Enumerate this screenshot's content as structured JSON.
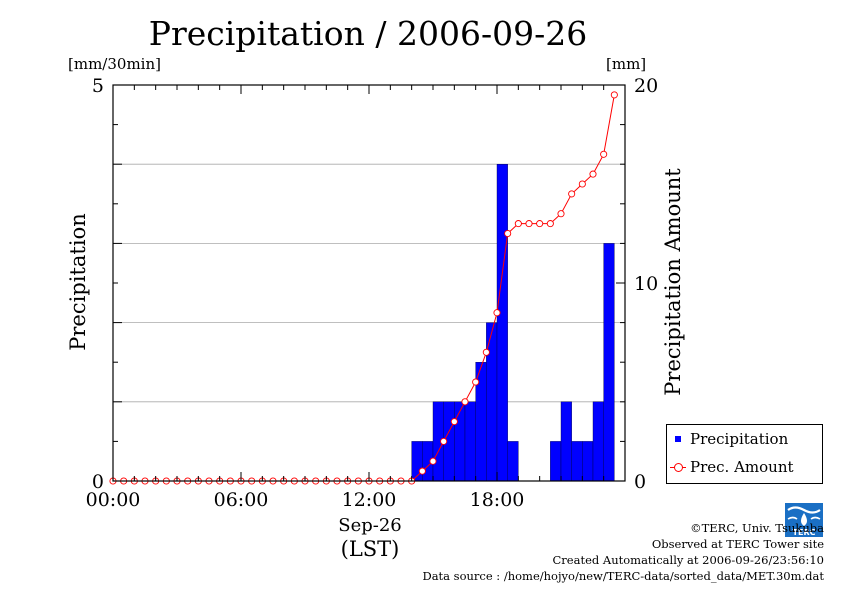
{
  "chart_data": {
    "type": "bar",
    "title": "Precipitation / 2006-09-26",
    "left_axis": {
      "unit": "[mm/30min]",
      "label": "Precipitation",
      "range": [
        0,
        5
      ],
      "ticks": [
        "0",
        "5"
      ]
    },
    "right_axis": {
      "unit": "[mm]",
      "label": "Precipitation Amount",
      "range": [
        0,
        20
      ],
      "ticks": [
        "0",
        "10",
        "20"
      ]
    },
    "x_axis": {
      "range_hours": [
        0,
        24
      ],
      "ticks": [
        "00:00",
        "06:00",
        "12:00",
        "18:00"
      ],
      "tick_hours": [
        0,
        6,
        12,
        18
      ],
      "date_label": "Sep-26",
      "timezone_label": "(LST)"
    },
    "grid": true,
    "legend_position": "bottom-right",
    "colors": {
      "bars": "#0000ff",
      "line": "#ff0000",
      "grid": "#aaaaaa"
    },
    "series": [
      {
        "name": "Precipitation",
        "type": "bar",
        "bar_start_hours": [
          14.0,
          14.5,
          15.0,
          15.5,
          16.0,
          16.5,
          17.0,
          17.5,
          18.0,
          18.5,
          19.0,
          19.5,
          20.0,
          20.5,
          21.0,
          21.5,
          22.0,
          22.5,
          23.0,
          23.5
        ],
        "values": [
          0.5,
          0.5,
          1.0,
          1.0,
          1.0,
          1.0,
          1.5,
          2.0,
          4.0,
          0.5,
          0,
          0,
          0,
          0.5,
          1.0,
          0.5,
          0.5,
          1.0,
          3.0,
          0
        ]
      },
      {
        "name": "Prec. Amount",
        "type": "line",
        "x_hours": [
          0,
          0.5,
          1,
          1.5,
          2,
          2.5,
          3,
          3.5,
          4,
          4.5,
          5,
          5.5,
          6,
          6.5,
          7,
          7.5,
          8,
          8.5,
          9,
          9.5,
          10,
          10.5,
          11,
          11.5,
          12,
          12.5,
          13,
          13.5,
          14,
          14.5,
          15,
          15.5,
          16,
          16.5,
          17,
          17.5,
          18,
          18.5,
          19,
          19.5,
          20,
          20.5,
          21,
          21.5,
          22,
          22.5,
          23,
          23.5
        ],
        "values": [
          0,
          0,
          0,
          0,
          0,
          0,
          0,
          0,
          0,
          0,
          0,
          0,
          0,
          0,
          0,
          0,
          0,
          0,
          0,
          0,
          0,
          0,
          0,
          0,
          0,
          0,
          0,
          0,
          0,
          0.5,
          1,
          2,
          3,
          4,
          5,
          6.5,
          8.5,
          12.5,
          13,
          13,
          13,
          13,
          13.5,
          14.5,
          15,
          15.5,
          16.5,
          19.5
        ]
      }
    ]
  },
  "credits": {
    "copyright": "©TERC, Univ. Tsukuba",
    "observed": "Observed at TERC Tower site",
    "created": "Created Automatically at 2006-09-26/23:56:10",
    "source": "Data source : /home/hojyo/new/TERC-data/sorted_data/MET.30m.dat"
  },
  "logo_text": "TERC"
}
